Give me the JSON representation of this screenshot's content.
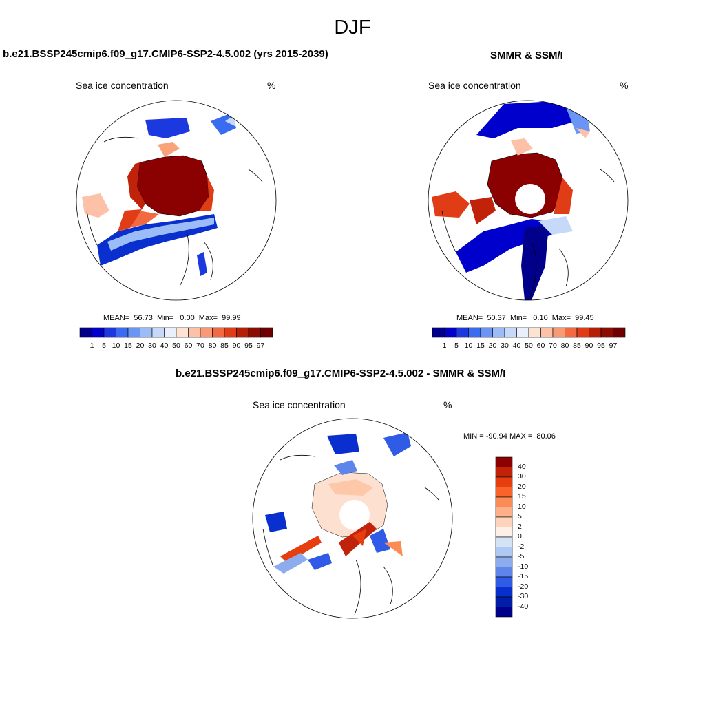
{
  "title": "DJF",
  "panels": [
    {
      "id": "model",
      "title": "b.e21.BSSP245cmip6.f09_g17.CMIP6-SSP2-4.5.002 (yrs 2015-2039)",
      "variable": "Sea ice concentration",
      "units": "%",
      "stats": "MEAN=  56.73  Min=   0.00  Max=  99.99"
    },
    {
      "id": "obs",
      "title": "SMMR & SSM/I",
      "variable": "Sea ice concentration",
      "units": "%",
      "stats": "MEAN=  50.37  Min=   0.10  Max=  99.45"
    },
    {
      "id": "diff",
      "title": "b.e21.BSSP245cmip6.f09_g17.CMIP6-SSP2-4.5.002 - SMMR & SSM/I",
      "variable": "Sea ice concentration",
      "units": "%",
      "stats": "MIN = -90.94 MAX =  80.06"
    }
  ],
  "abs_colorbar": {
    "labels": [
      "1",
      "5",
      "10",
      "15",
      "20",
      "30",
      "40",
      "50",
      "60",
      "70",
      "80",
      "85",
      "90",
      "95",
      "97"
    ],
    "colors": [
      "#00008b",
      "#0000cd",
      "#1c39e0",
      "#3a6cf2",
      "#6a95f5",
      "#9bbcf7",
      "#c6d9f9",
      "#e8f1fb",
      "#fde3d2",
      "#fcc1a6",
      "#f99a76",
      "#f36a42",
      "#e03c16",
      "#b71f05",
      "#8b0d02",
      "#6f0000"
    ]
  },
  "diff_colorbar": {
    "labels": [
      "40",
      "30",
      "20",
      "15",
      "10",
      "5",
      "2",
      "0",
      "-2",
      "-5",
      "-10",
      "-15",
      "-20",
      "-30",
      "-40"
    ],
    "colors": [
      "#8b0000",
      "#c0230a",
      "#e63e0e",
      "#f9642a",
      "#fc8c55",
      "#fdb08a",
      "#fdd4bb",
      "#fdf0e6",
      "#d5e3f7",
      "#b0c9f2",
      "#8cacee",
      "#5e86ea",
      "#2f5be6",
      "#0a2fcf",
      "#001ea8",
      "#00008b"
    ]
  }
}
